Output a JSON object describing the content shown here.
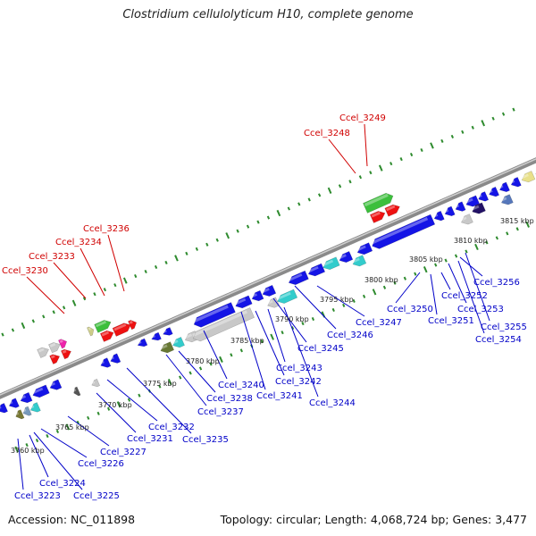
{
  "title": "Clostridium cellulolyticum H10, complete genome",
  "footer": {
    "accession": "Accession: NC_011898",
    "summary": "Topology: circular; Length: 4,068,724 bp; Genes: 3,477"
  },
  "scale_labels": [
    "3760 kbp",
    "3765 kbp",
    "3770 kbp",
    "3775 kbp",
    "3780 kbp",
    "3785 kbp",
    "3790 kbp",
    "3795 kbp",
    "3800 kbp",
    "3805 kbp",
    "3810 kbp",
    "3815 kbp"
  ],
  "forward_labels": [
    "Ccel_3230",
    "Ccel_3233",
    "Ccel_3234",
    "Ccel_3236",
    "Ccel_3248",
    "Ccel_3249"
  ],
  "reverse_labels": [
    "Ccel_3223",
    "Ccel_3224",
    "Ccel_3225",
    "Ccel_3226",
    "Ccel_3227",
    "Ccel_3231",
    "Ccel_3232",
    "Ccel_3235",
    "Ccel_3237",
    "Ccel_3238",
    "Ccel_3240",
    "Ccel_3241",
    "Ccel_3242",
    "Ccel_3243",
    "Ccel_3244",
    "Ccel_3245",
    "Ccel_3246",
    "Ccel_3247",
    "Ccel_3250",
    "Ccel_3251",
    "Ccel_3252",
    "Ccel_3253",
    "Ccel_3254",
    "Ccel_3255",
    "Ccel_3256"
  ],
  "colors": {
    "backbone": "#8a8a8a",
    "tick": "#2e8b2e",
    "forward_label": "#d00000",
    "reverse_label": "#0000c8",
    "gene_blue": "#1414e6",
    "gene_red": "#ee1111",
    "gene_green": "#3cbf3c",
    "gene_cyan": "#33cccc",
    "gene_grey": "#c8c8c8"
  }
}
